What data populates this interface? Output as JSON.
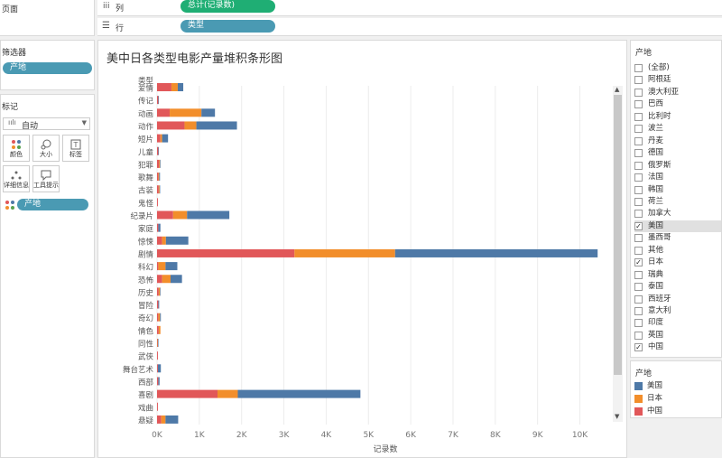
{
  "pages_label": "页面",
  "shelves": {
    "columns_label": "列",
    "columns_pill": "总计(记录数)",
    "rows_label": "行",
    "rows_pill": "类型"
  },
  "filters": {
    "title": "筛选器",
    "pill": "产地"
  },
  "marks": {
    "title": "标记",
    "type_value": "自动",
    "cards": [
      {
        "label": "颜色",
        "icon": "color-dots-icon"
      },
      {
        "label": "大小",
        "icon": "size-icon"
      },
      {
        "label": "标签",
        "icon": "text-label-icon"
      },
      {
        "label": "详细信息",
        "icon": "detail-icon"
      },
      {
        "label": "工具提示",
        "icon": "tooltip-icon"
      }
    ],
    "color_pill": "产地"
  },
  "filter_card": {
    "title": "产地",
    "items": [
      {
        "label": "(全部)",
        "checked": false
      },
      {
        "label": "阿根廷",
        "checked": false
      },
      {
        "label": "澳大利亚",
        "checked": false
      },
      {
        "label": "巴西",
        "checked": false
      },
      {
        "label": "比利时",
        "checked": false
      },
      {
        "label": "波兰",
        "checked": false
      },
      {
        "label": "丹麦",
        "checked": false
      },
      {
        "label": "德国",
        "checked": false
      },
      {
        "label": "俄罗斯",
        "checked": false
      },
      {
        "label": "法国",
        "checked": false
      },
      {
        "label": "韩国",
        "checked": false
      },
      {
        "label": "荷兰",
        "checked": false
      },
      {
        "label": "加拿大",
        "checked": false
      },
      {
        "label": "美国",
        "checked": true,
        "selected": true
      },
      {
        "label": "墨西哥",
        "checked": false
      },
      {
        "label": "其他",
        "checked": false
      },
      {
        "label": "日本",
        "checked": true
      },
      {
        "label": "瑞典",
        "checked": false
      },
      {
        "label": "泰国",
        "checked": false
      },
      {
        "label": "西班牙",
        "checked": false
      },
      {
        "label": "意大利",
        "checked": false
      },
      {
        "label": "印度",
        "checked": false
      },
      {
        "label": "英国",
        "checked": false
      },
      {
        "label": "中国",
        "checked": true
      }
    ]
  },
  "legend": {
    "title": "产地",
    "items": [
      {
        "label": "美国",
        "color": "#4e79a7"
      },
      {
        "label": "日本",
        "color": "#f28e2b"
      },
      {
        "label": "中国",
        "color": "#e15759"
      }
    ]
  },
  "chart_data": {
    "type": "bar",
    "orientation": "horizontal",
    "stacked": true,
    "title": "美中日各类型电影产量堆积条形图",
    "row_header": "类型",
    "xlabel": "记录数",
    "xlim": [
      0,
      10800
    ],
    "x_ticks": [
      "0K",
      "1K",
      "2K",
      "3K",
      "4K",
      "5K",
      "6K",
      "7K",
      "8K",
      "9K",
      "10K"
    ],
    "grid": true,
    "categories": [
      "爱情",
      "传记",
      "动画",
      "动作",
      "短片",
      "儿童",
      "犯罪",
      "歌舞",
      "古装",
      "鬼怪",
      "纪录片",
      "家庭",
      "惊悚",
      "剧情",
      "科幻",
      "恐怖",
      "历史",
      "冒险",
      "奇幻",
      "情色",
      "同性",
      "武侠",
      "舞台艺术",
      "西部",
      "喜剧",
      "戏曲",
      "悬疑"
    ],
    "category_labels": [
      "爱情",
      "传记",
      "动画",
      "动作",
      "短片",
      "儿童",
      "犯罪",
      "歌舞",
      "古装",
      "鬼怪",
      "纪录片",
      "家庭",
      "惊悚",
      "剧情",
      "科幻",
      "恐怖",
      "历史",
      "冒险",
      "奇幻",
      "情色",
      "同性",
      "武侠",
      "舞台艺术",
      "西部",
      "喜剧",
      "戏曲",
      "悬疑"
    ],
    "series": [
      {
        "name": "中国",
        "color": "#e15759",
        "values": [
          340,
          30,
          300,
          650,
          80,
          30,
          50,
          30,
          40,
          20,
          380,
          30,
          120,
          3250,
          30,
          120,
          40,
          30,
          30,
          40,
          10,
          20,
          20,
          30,
          1430,
          20,
          100
        ]
      },
      {
        "name": "日本",
        "color": "#f28e2b",
        "values": [
          150,
          0,
          750,
          280,
          40,
          0,
          20,
          20,
          20,
          0,
          330,
          0,
          90,
          2380,
          170,
          200,
          30,
          0,
          40,
          40,
          10,
          0,
          0,
          0,
          480,
          0,
          100
        ]
      },
      {
        "name": "美国",
        "color": "#4e79a7",
        "values": [
          130,
          10,
          320,
          960,
          140,
          10,
          10,
          20,
          10,
          0,
          1000,
          50,
          530,
          4790,
          280,
          270,
          10,
          20,
          20,
          0,
          10,
          0,
          70,
          30,
          2900,
          0,
          300
        ]
      }
    ]
  }
}
